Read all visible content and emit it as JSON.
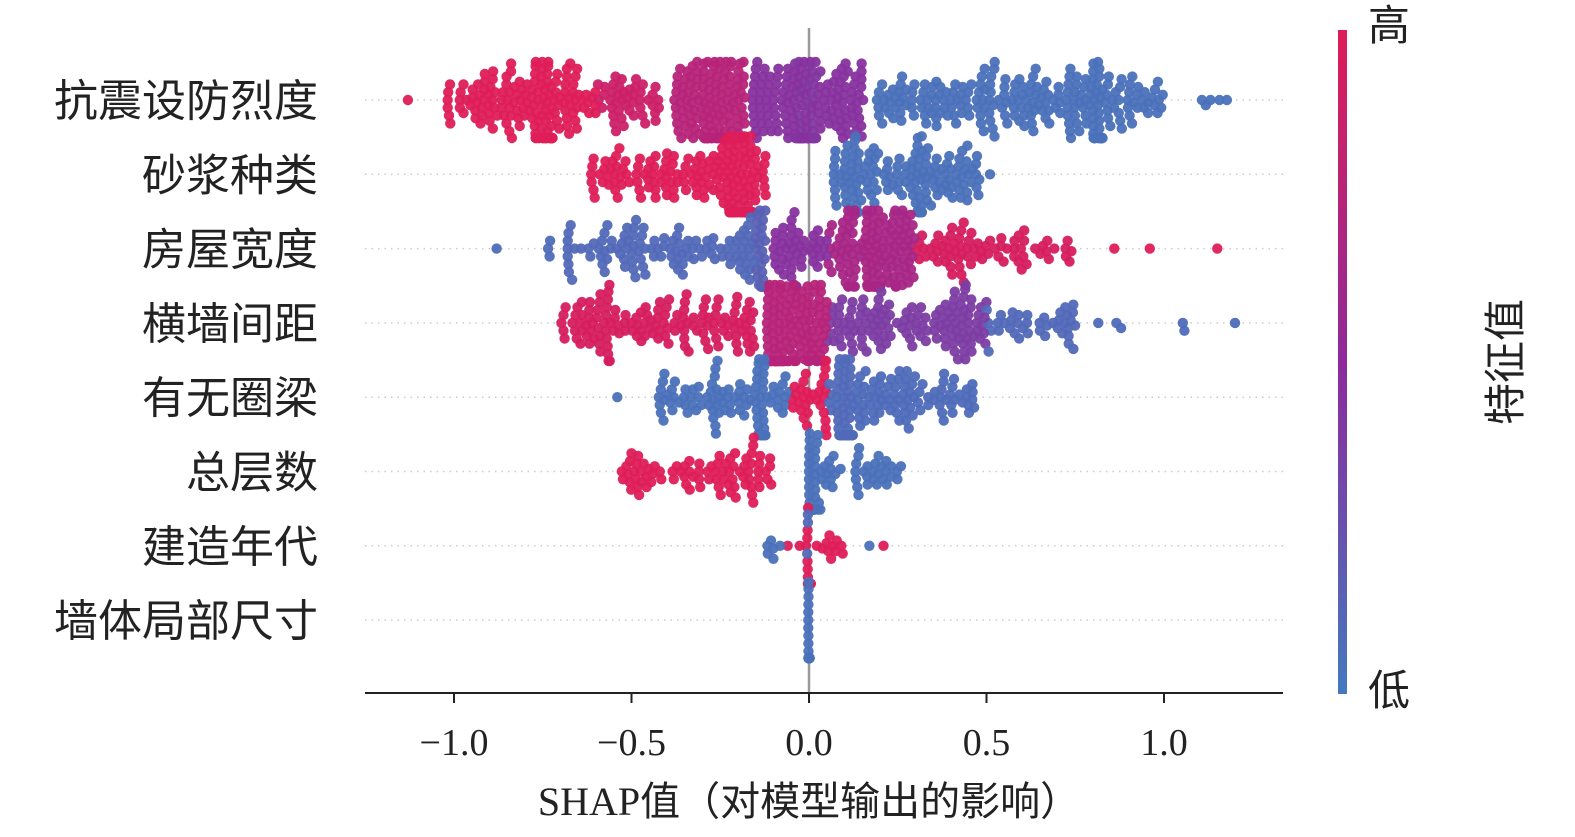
{
  "chart_data": {
    "type": "scatter",
    "subtype": "shap-beeswarm",
    "xlabel": "SHAP值（对模型输出的影响）",
    "xlim": [
      -1.25,
      1.335
    ],
    "xticks": [
      -1.0,
      -0.5,
      0.0,
      0.5,
      1.0
    ],
    "xtick_labels": [
      "−1.0",
      "−0.5",
      "0.0",
      "0.5",
      "1.0"
    ],
    "colorbar": {
      "label": "特征值",
      "high_label": "高",
      "low_label": "低",
      "high_color": "#DE1D58",
      "low_color": "#4379BF"
    },
    "features": [
      {
        "name": "抗震设防烈度",
        "segments": [
          {
            "from": -1.13,
            "to": -1.13,
            "n": 1,
            "c": 1
          },
          {
            "from": -1.02,
            "to": -0.6,
            "n": 130,
            "c": 1
          },
          {
            "from": -0.78,
            "to": -0.7,
            "n": 40,
            "c": 1
          },
          {
            "from": -0.6,
            "to": -0.42,
            "n": 45,
            "c": 0.88
          },
          {
            "from": -0.38,
            "to": -0.18,
            "n": 120,
            "c": 0.75
          },
          {
            "from": -0.3,
            "to": -0.24,
            "n": 40,
            "c": 0.75
          },
          {
            "from": -0.16,
            "to": 0.16,
            "n": 150,
            "c": 0.45
          },
          {
            "from": -0.04,
            "to": 0.02,
            "n": 50,
            "c": 0.42
          },
          {
            "from": 0.19,
            "to": 0.8,
            "n": 170,
            "c": 0.05
          },
          {
            "from": 0.8,
            "to": 0.83,
            "n": 40,
            "c": 0.05
          },
          {
            "from": 0.83,
            "to": 1.0,
            "n": 40,
            "c": 0.05
          },
          {
            "from": 1.08,
            "to": 1.21,
            "n": 5,
            "c": 0.05
          }
        ]
      },
      {
        "name": "砂浆种类",
        "segments": [
          {
            "from": -0.62,
            "to": -0.3,
            "n": 75,
            "c": 1
          },
          {
            "from": -0.3,
            "to": -0.12,
            "n": 70,
            "c": 1
          },
          {
            "from": -0.23,
            "to": -0.17,
            "n": 60,
            "c": 1
          },
          {
            "from": 0.05,
            "to": 0.48,
            "n": 110,
            "c": 0.05
          },
          {
            "from": 0.1,
            "to": 0.14,
            "n": 20,
            "c": 0.05
          },
          {
            "from": 0.3,
            "to": 0.33,
            "n": 22,
            "c": 0.05
          },
          {
            "from": 0.51,
            "to": 0.51,
            "n": 1,
            "c": 0.05
          }
        ]
      },
      {
        "name": "房屋宽度",
        "segments": [
          {
            "from": -0.88,
            "to": -0.88,
            "n": 1,
            "c": 0.08
          },
          {
            "from": -0.78,
            "to": -0.72,
            "n": 3,
            "c": 0.08
          },
          {
            "from": -0.68,
            "to": -0.15,
            "n": 110,
            "c": 0.1
          },
          {
            "from": -0.15,
            "to": -0.12,
            "n": 35,
            "c": 0.15
          },
          {
            "from": -0.1,
            "to": 0.05,
            "n": 50,
            "c": 0.45
          },
          {
            "from": 0.05,
            "to": 0.3,
            "n": 120,
            "c": 0.65
          },
          {
            "from": 0.16,
            "to": 0.2,
            "n": 30,
            "c": 0.68
          },
          {
            "from": 0.3,
            "to": 0.75,
            "n": 75,
            "c": 0.95
          },
          {
            "from": 0.86,
            "to": 0.86,
            "n": 1,
            "c": 1
          },
          {
            "from": 0.96,
            "to": 0.96,
            "n": 1,
            "c": 1
          },
          {
            "from": 1.15,
            "to": 1.15,
            "n": 1,
            "c": 1
          }
        ]
      },
      {
        "name": "横墙间距",
        "segments": [
          {
            "from": -0.7,
            "to": -0.15,
            "n": 140,
            "c": 0.95
          },
          {
            "from": -0.12,
            "to": 0.05,
            "n": 120,
            "c": 0.75
          },
          {
            "from": -0.1,
            "to": -0.06,
            "n": 40,
            "c": 0.75
          },
          {
            "from": 0.05,
            "to": 0.5,
            "n": 130,
            "c": 0.38
          },
          {
            "from": 0.5,
            "to": 0.75,
            "n": 40,
            "c": 0.1
          },
          {
            "from": 0.8,
            "to": 0.88,
            "n": 3,
            "c": 0.08
          },
          {
            "from": 1.05,
            "to": 1.06,
            "n": 2,
            "c": 0.08
          },
          {
            "from": 1.2,
            "to": 1.2,
            "n": 1,
            "c": 0.08
          }
        ]
      },
      {
        "name": "有无圈梁",
        "segments": [
          {
            "from": -0.54,
            "to": -0.54,
            "n": 1,
            "c": 0.05
          },
          {
            "from": -0.43,
            "to": -0.05,
            "n": 80,
            "c": 0.05
          },
          {
            "from": -0.15,
            "to": -0.12,
            "n": 25,
            "c": 0.05
          },
          {
            "from": -0.05,
            "to": 0.05,
            "n": 30,
            "c": 1
          },
          {
            "from": 0.05,
            "to": 0.47,
            "n": 110,
            "c": 0.08
          },
          {
            "from": 0.08,
            "to": 0.12,
            "n": 45,
            "c": 0.1
          }
        ]
      },
      {
        "name": "总层数",
        "segments": [
          {
            "from": -0.53,
            "to": -0.41,
            "n": 25,
            "c": 1
          },
          {
            "from": -0.39,
            "to": -0.1,
            "n": 60,
            "c": 1
          },
          {
            "from": 0.0,
            "to": 0.02,
            "n": 50,
            "c": 0.05
          },
          {
            "from": 0.02,
            "to": 0.26,
            "n": 45,
            "c": 0.05
          }
        ]
      },
      {
        "name": "建造年代",
        "segments": [
          {
            "from": -0.13,
            "to": -0.08,
            "n": 6,
            "c": 0.05
          },
          {
            "from": -0.06,
            "to": 0.1,
            "n": 18,
            "c": 1
          },
          {
            "from": -0.005,
            "to": 0.005,
            "n": 20,
            "c": 1
          },
          {
            "from": -0.005,
            "to": 0.005,
            "n": 14,
            "c": 0.1
          },
          {
            "from": 0.17,
            "to": 0.17,
            "n": 1,
            "c": 0.05
          },
          {
            "from": 0.21,
            "to": 0.21,
            "n": 1,
            "c": 1
          }
        ]
      },
      {
        "name": "墙体局部尺寸",
        "segments": [
          {
            "from": -0.002,
            "to": 0.002,
            "n": 60,
            "c": 0.05
          }
        ]
      }
    ]
  }
}
